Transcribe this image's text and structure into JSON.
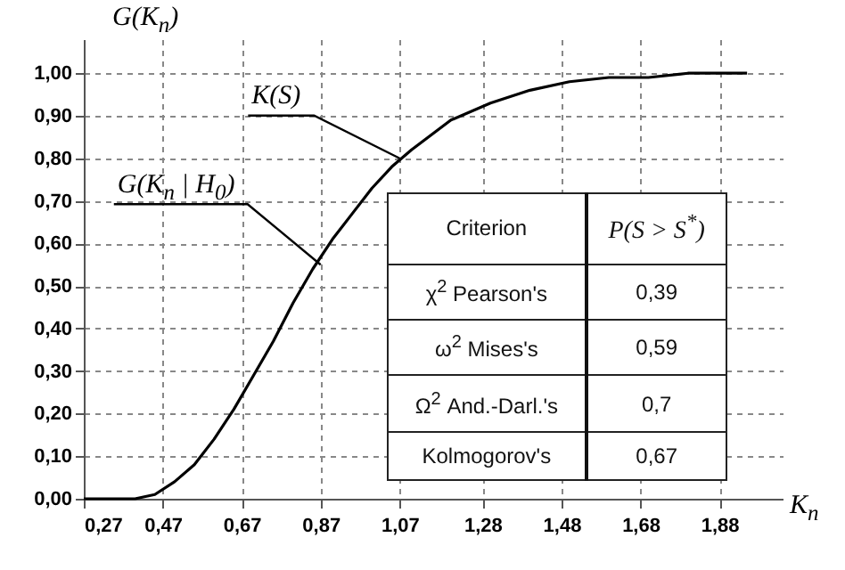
{
  "chart_data": {
    "type": "line",
    "xlabel": "K$_{n}$",
    "ylabel": "G(K$_{n}$)",
    "x": [
      0.27,
      0.35,
      0.4,
      0.45,
      0.5,
      0.55,
      0.6,
      0.65,
      0.7,
      0.75,
      0.8,
      0.85,
      0.9,
      0.95,
      1.0,
      1.05,
      1.1,
      1.2,
      1.3,
      1.4,
      1.5,
      1.6,
      1.7,
      1.8,
      1.9,
      1.95
    ],
    "series": [
      {
        "color": "#000000",
        "values": [
          0,
          0,
          0,
          0.01,
          0.04,
          0.08,
          0.14,
          0.21,
          0.29,
          0.37,
          0.46,
          0.54,
          0.61,
          0.67,
          0.73,
          0.78,
          0.82,
          0.89,
          0.93,
          0.96,
          0.98,
          0.99,
          0.99,
          1.0,
          1.0,
          1.0
        ]
      }
    ],
    "xlim": [
      0.27,
      2.04
    ],
    "ylim": [
      0,
      1.08
    ],
    "xticks": [
      {
        "value": 0.27,
        "label": "0,27"
      },
      {
        "value": 0.47,
        "label": "0,47"
      },
      {
        "value": 0.67,
        "label": "0,67"
      },
      {
        "value": 0.87,
        "label": "0,87"
      },
      {
        "value": 1.07,
        "label": "1,07"
      },
      {
        "value": 1.28,
        "label": "1,28"
      },
      {
        "value": 1.48,
        "label": "1,48"
      },
      {
        "value": 1.68,
        "label": "1,68"
      },
      {
        "value": 1.88,
        "label": "1,88"
      }
    ],
    "yticks": [
      {
        "value": 0,
        "label": "0,00"
      },
      {
        "value": 0.1,
        "label": "0,10"
      },
      {
        "value": 0.2,
        "label": "0,20"
      },
      {
        "value": 0.3,
        "label": "0,30"
      },
      {
        "value": 0.4,
        "label": "0,40"
      },
      {
        "value": 0.5,
        "label": "0,50"
      },
      {
        "value": 0.6,
        "label": "0,60"
      },
      {
        "value": 0.7,
        "label": "0,70"
      },
      {
        "value": 0.8,
        "label": "0,80"
      },
      {
        "value": 0.9,
        "label": "0,90"
      },
      {
        "value": 1.0,
        "label": "1,00"
      }
    ],
    "grid": true,
    "marker": "none",
    "line_style": "solid",
    "annotations": [
      {
        "text": "K(S)",
        "x": 1.07,
        "y": 0.8
      },
      {
        "text": "G(K$_{n}$ | H$_{0}$)",
        "x": 0.87,
        "y": 0.55
      },
      "Criterion",
      "P(S > S$^{*}$)",
      "χ$^{2}$ Pearson's",
      "0,39",
      "ω$^{2}$ Mises's",
      "0,59",
      "Ω$^{2}$ And.-Darl.'s",
      "0,7",
      "Kolmogorov's",
      "0,67"
    ]
  }
}
